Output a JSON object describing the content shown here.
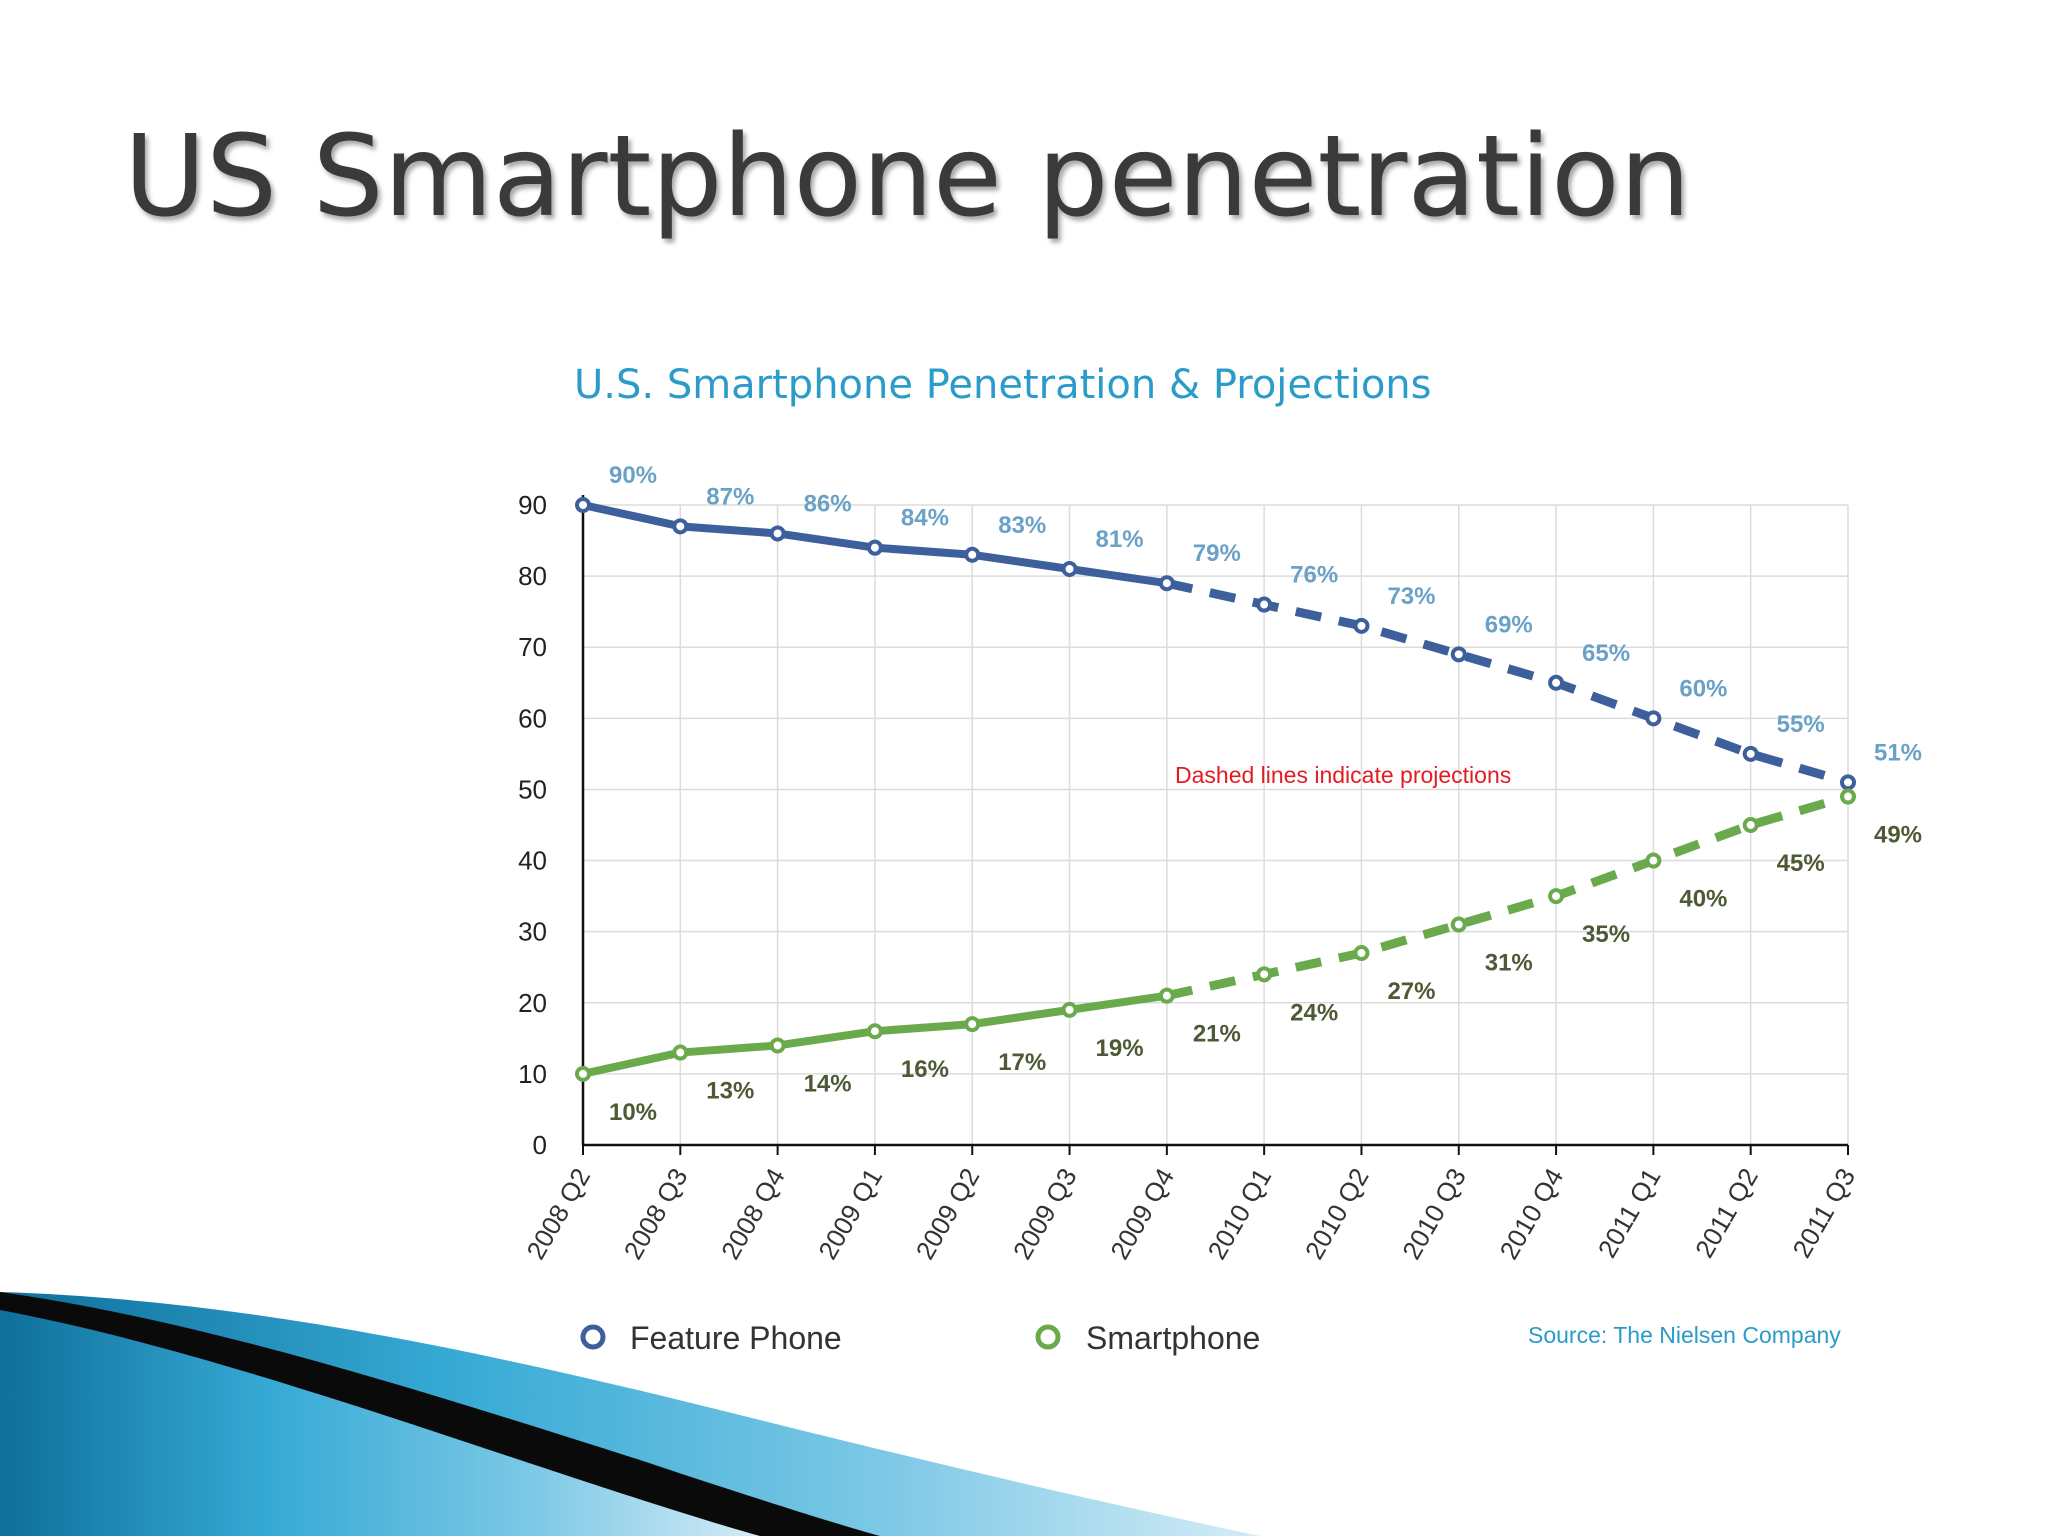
{
  "slide_title": "US Smartphone penetration",
  "colors": {
    "feature_phone": "#3d5f9c",
    "smartphone": "#6aaa4c",
    "chart_title": "#2b9bc9",
    "annotation": "#e31b23",
    "source": "#2b9bc9"
  },
  "chart_data": {
    "type": "line",
    "title": "U.S. Smartphone Penetration & Projections",
    "xlabel": "",
    "ylabel": "",
    "ylim": [
      0,
      90
    ],
    "yticks": [
      0,
      10,
      20,
      30,
      40,
      50,
      60,
      70,
      80,
      90
    ],
    "grid": true,
    "categories": [
      "2008 Q2",
      "2008 Q3",
      "2008 Q4",
      "2009 Q1",
      "2009 Q2",
      "2009 Q3",
      "2009 Q4",
      "2010 Q1",
      "2010 Q2",
      "2010 Q3",
      "2010 Q4",
      "2011 Q1",
      "2011 Q2",
      "2011 Q3"
    ],
    "projection_start_index": 6,
    "series": [
      {
        "name": "Feature Phone",
        "values": [
          90,
          87,
          86,
          84,
          83,
          81,
          79,
          76,
          73,
          69,
          65,
          60,
          55,
          51
        ],
        "labels": [
          "90%",
          "87%",
          "86%",
          "84%",
          "83%",
          "81%",
          "79%",
          "76%",
          "73%",
          "69%",
          "65%",
          "60%",
          "55%",
          "51%"
        ]
      },
      {
        "name": "Smartphone",
        "values": [
          10,
          13,
          14,
          16,
          17,
          19,
          21,
          24,
          27,
          31,
          35,
          40,
          45,
          49
        ],
        "labels": [
          "10%",
          "13%",
          "14%",
          "16%",
          "17%",
          "19%",
          "21%",
          "24%",
          "27%",
          "31%",
          "35%",
          "40%",
          "45%",
          "49%"
        ]
      }
    ],
    "annotation": "Dashed lines indicate projections",
    "legend": [
      "Feature Phone",
      "Smartphone"
    ],
    "legend_position": "bottom",
    "source": "Source: The Nielsen Company"
  }
}
